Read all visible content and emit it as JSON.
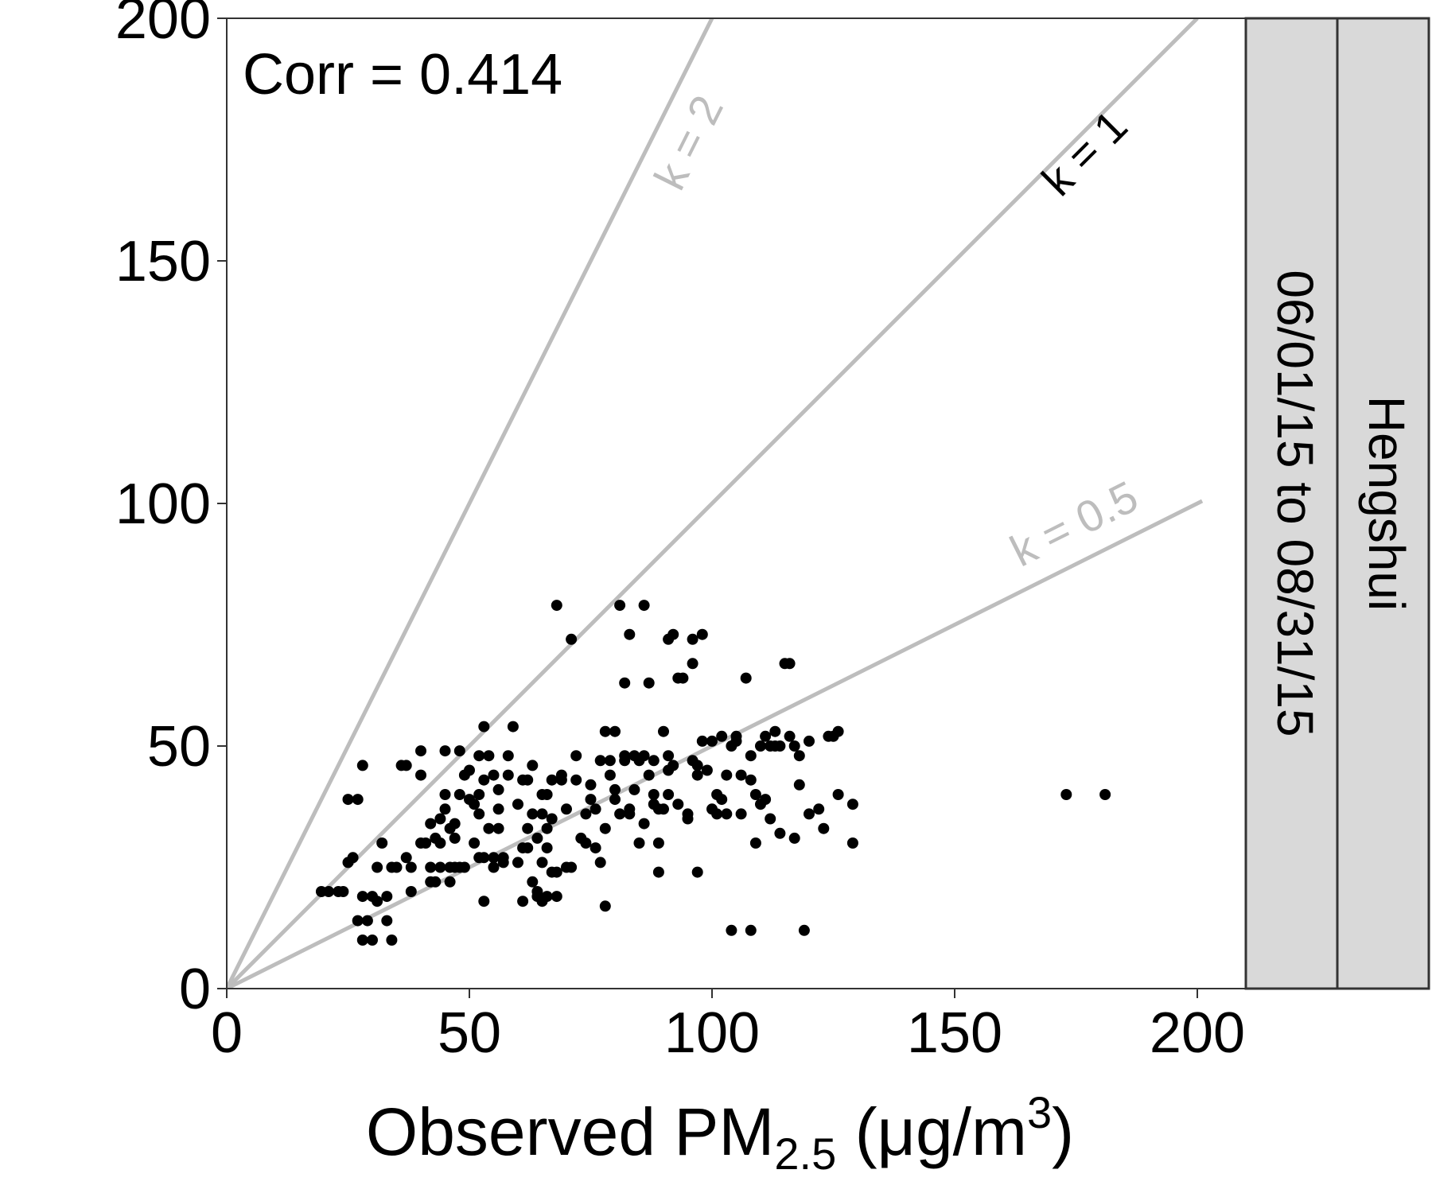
{
  "chart_data": {
    "type": "scatter",
    "annotation": "Corr = 0.414",
    "xlabel": {
      "main": "Observed PM",
      "sub": "2.5",
      "unit": " (μg/m",
      "sup": "3",
      "close": ")"
    },
    "ylabel": "",
    "xlim": [
      0,
      235
    ],
    "ylim": [
      0,
      200
    ],
    "x_ticks": [
      0,
      50,
      100,
      150,
      200
    ],
    "y_ticks": [
      0,
      50,
      100,
      150,
      200
    ],
    "grid": false,
    "colors": {
      "points": "#000000",
      "reference_lines": "#bdbdbd",
      "strip_fill": "#d9d9d9",
      "strip_border": "#333333"
    },
    "reference_lines": [
      {
        "slope": 2,
        "label": "k = 2",
        "label_color": "#bdbdbd",
        "label_at": [
          98,
          173
        ]
      },
      {
        "slope": 1,
        "label": "k = 1",
        "label_color": "#000000",
        "label_at": [
          179,
          170
        ]
      },
      {
        "slope": 0.5,
        "label": "k = 0.5",
        "label_color": "#bdbdbd",
        "label_at": [
          176,
          93
        ]
      }
    ],
    "facet_strips": [
      "06/01/15 to 08/31/15",
      "Hengshui"
    ],
    "points": [
      [
        19.5,
        20
      ],
      [
        21,
        20
      ],
      [
        23,
        20
      ],
      [
        24,
        20
      ],
      [
        25,
        26
      ],
      [
        25,
        39
      ],
      [
        27,
        39
      ],
      [
        28,
        46
      ],
      [
        26,
        27
      ],
      [
        27,
        14
      ],
      [
        28,
        19
      ],
      [
        29,
        14
      ],
      [
        28,
        10
      ],
      [
        30,
        10
      ],
      [
        31,
        18
      ],
      [
        30,
        19
      ],
      [
        31,
        25
      ],
      [
        32,
        30
      ],
      [
        33,
        19
      ],
      [
        33,
        14
      ],
      [
        34,
        10
      ],
      [
        34,
        25
      ],
      [
        35,
        25
      ],
      [
        36,
        46
      ],
      [
        37,
        46
      ],
      [
        37,
        27
      ],
      [
        38,
        25
      ],
      [
        38,
        20
      ],
      [
        40,
        30
      ],
      [
        40,
        44
      ],
      [
        40,
        49
      ],
      [
        41,
        30
      ],
      [
        42,
        25
      ],
      [
        42,
        22
      ],
      [
        42,
        34
      ],
      [
        43,
        31
      ],
      [
        43,
        22
      ],
      [
        44,
        35
      ],
      [
        44,
        30
      ],
      [
        44,
        25
      ],
      [
        45,
        37
      ],
      [
        45,
        49
      ],
      [
        45,
        40
      ],
      [
        46,
        33
      ],
      [
        46,
        25
      ],
      [
        46,
        22
      ],
      [
        47,
        31
      ],
      [
        47,
        25
      ],
      [
        47,
        34
      ],
      [
        48,
        49
      ],
      [
        48,
        40
      ],
      [
        48,
        25
      ],
      [
        49,
        44
      ],
      [
        49,
        25
      ],
      [
        50,
        45
      ],
      [
        50,
        39
      ],
      [
        51,
        38
      ],
      [
        51,
        30
      ],
      [
        52,
        40
      ],
      [
        52,
        27
      ],
      [
        52,
        36
      ],
      [
        52,
        48
      ],
      [
        53,
        54
      ],
      [
        53,
        43
      ],
      [
        53,
        27
      ],
      [
        53,
        18
      ],
      [
        54,
        48
      ],
      [
        54,
        33
      ],
      [
        55,
        44
      ],
      [
        55,
        27
      ],
      [
        55,
        25
      ],
      [
        56,
        41
      ],
      [
        56,
        33
      ],
      [
        56,
        37
      ],
      [
        57,
        27
      ],
      [
        57,
        26
      ],
      [
        58,
        48
      ],
      [
        58,
        44
      ],
      [
        59,
        54
      ],
      [
        60,
        26
      ],
      [
        60,
        38
      ],
      [
        61,
        18
      ],
      [
        61,
        29
      ],
      [
        61,
        43
      ],
      [
        62,
        29
      ],
      [
        62,
        43
      ],
      [
        62,
        33
      ],
      [
        63,
        46
      ],
      [
        63,
        36
      ],
      [
        63,
        22
      ],
      [
        64,
        31
      ],
      [
        64,
        20
      ],
      [
        64,
        19
      ],
      [
        65,
        26
      ],
      [
        65,
        18
      ],
      [
        65,
        36
      ],
      [
        65,
        40
      ],
      [
        66,
        29
      ],
      [
        66,
        40
      ],
      [
        66,
        33
      ],
      [
        66,
        19
      ],
      [
        67,
        35
      ],
      [
        67,
        24
      ],
      [
        67,
        43
      ],
      [
        68,
        19
      ],
      [
        68,
        79
      ],
      [
        68,
        24
      ],
      [
        69,
        44
      ],
      [
        69,
        43
      ],
      [
        70,
        37
      ],
      [
        70,
        25
      ],
      [
        71,
        25
      ],
      [
        71,
        72
      ],
      [
        72,
        48
      ],
      [
        72,
        43
      ],
      [
        73,
        31
      ],
      [
        74,
        36
      ],
      [
        74,
        30
      ],
      [
        75,
        39
      ],
      [
        75,
        42
      ],
      [
        76,
        29
      ],
      [
        76,
        37
      ],
      [
        77,
        26
      ],
      [
        77,
        47
      ],
      [
        78,
        33
      ],
      [
        78,
        17
      ],
      [
        78,
        53
      ],
      [
        79,
        44
      ],
      [
        79,
        47
      ],
      [
        80,
        39
      ],
      [
        80,
        41
      ],
      [
        80,
        53
      ],
      [
        81,
        79
      ],
      [
        81,
        36
      ],
      [
        82,
        48
      ],
      [
        82,
        47
      ],
      [
        82,
        63
      ],
      [
        83,
        36
      ],
      [
        83,
        37
      ],
      [
        83,
        73
      ],
      [
        84,
        48
      ],
      [
        84,
        41
      ],
      [
        85,
        30
      ],
      [
        85,
        47
      ],
      [
        86,
        79
      ],
      [
        86,
        48
      ],
      [
        86,
        34
      ],
      [
        87,
        63
      ],
      [
        87,
        44
      ],
      [
        88,
        40
      ],
      [
        88,
        38
      ],
      [
        88,
        47
      ],
      [
        89,
        37
      ],
      [
        89,
        24
      ],
      [
        89,
        30
      ],
      [
        90,
        53
      ],
      [
        90,
        37
      ],
      [
        91,
        72
      ],
      [
        91,
        40
      ],
      [
        91,
        48
      ],
      [
        91,
        45
      ],
      [
        92,
        46
      ],
      [
        92,
        73
      ],
      [
        93,
        64
      ],
      [
        93,
        38
      ],
      [
        94,
        64
      ],
      [
        95,
        36
      ],
      [
        95,
        35
      ],
      [
        96,
        67
      ],
      [
        96,
        72
      ],
      [
        96,
        47
      ],
      [
        97,
        24
      ],
      [
        97,
        44
      ],
      [
        97,
        46
      ],
      [
        98,
        73
      ],
      [
        98,
        51
      ],
      [
        99,
        45
      ],
      [
        100,
        37
      ],
      [
        100,
        51
      ],
      [
        101,
        36
      ],
      [
        101,
        40
      ],
      [
        102,
        52
      ],
      [
        102,
        39
      ],
      [
        103,
        44
      ],
      [
        103,
        36
      ],
      [
        104,
        12
      ],
      [
        104,
        50
      ],
      [
        105,
        51
      ],
      [
        105,
        52
      ],
      [
        106,
        44
      ],
      [
        106,
        36
      ],
      [
        107,
        64
      ],
      [
        108,
        48
      ],
      [
        108,
        12
      ],
      [
        108,
        43
      ],
      [
        109,
        40
      ],
      [
        109,
        30
      ],
      [
        110,
        38
      ],
      [
        110,
        50
      ],
      [
        111,
        39
      ],
      [
        111,
        52
      ],
      [
        112,
        35
      ],
      [
        112,
        50
      ],
      [
        113,
        53
      ],
      [
        113,
        50
      ],
      [
        114,
        50
      ],
      [
        114,
        32
      ],
      [
        115,
        67
      ],
      [
        116,
        67
      ],
      [
        116,
        52
      ],
      [
        117,
        31
      ],
      [
        117,
        50
      ],
      [
        118,
        42
      ],
      [
        118,
        48
      ],
      [
        119,
        12
      ],
      [
        120,
        36
      ],
      [
        120,
        51
      ],
      [
        122,
        37
      ],
      [
        123,
        33
      ],
      [
        124,
        52
      ],
      [
        125,
        52
      ],
      [
        126,
        40
      ],
      [
        126,
        53
      ],
      [
        129,
        38
      ],
      [
        129,
        30
      ],
      [
        173,
        40
      ],
      [
        181,
        40
      ]
    ]
  }
}
